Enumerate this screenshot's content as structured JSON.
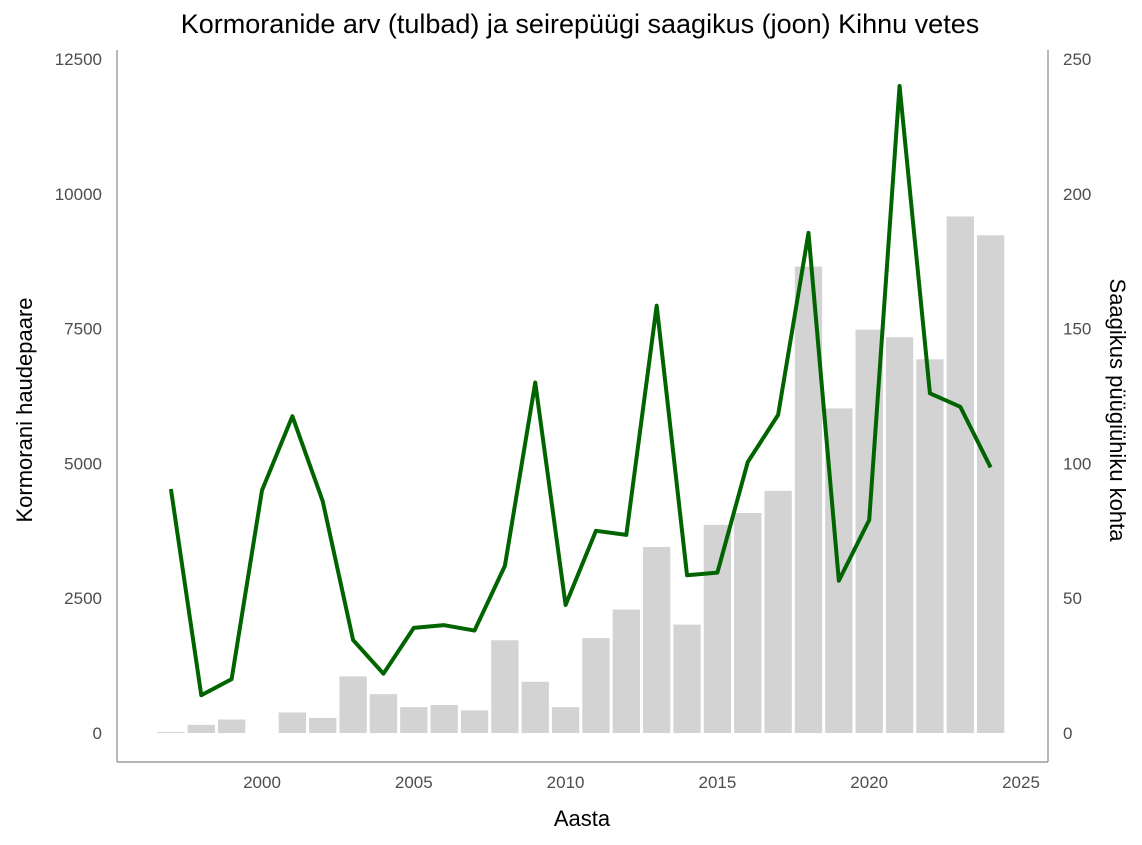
{
  "chart_data": {
    "type": "bar+line",
    "title": "Kormoranide arv (tulbad) ja seirepüügi saagikus (joon) Kihnu vetes",
    "xlabel": "Aasta",
    "ylabel": "Kormorani haudepaare",
    "y2label": "Saagikus püügiühiku kohta",
    "xlim": [
      1996.3,
      2025.4
    ],
    "ylim": [
      0,
      12500
    ],
    "y2lim": [
      0,
      250
    ],
    "xticks": [
      "2000",
      "2005",
      "2010",
      "2015",
      "2020",
      "2025"
    ],
    "yticks": [
      "0",
      "2500",
      "5000",
      "7500",
      "10000",
      "12500"
    ],
    "y2ticks": [
      "0",
      "50",
      "100",
      "150",
      "200",
      "250"
    ],
    "grid": false,
    "colors": {
      "bars": "#d3d3d3",
      "line": "#006400"
    },
    "years": [
      1997,
      1998,
      1999,
      2000,
      2001,
      2002,
      2003,
      2004,
      2005,
      2006,
      2007,
      2008,
      2009,
      2010,
      2011,
      2012,
      2013,
      2014,
      2015,
      2016,
      2017,
      2018,
      2019,
      2020,
      2021,
      2022,
      2023,
      2024
    ],
    "series": [
      {
        "name": "Kormorani haudepaare",
        "type": "bar",
        "axis": "left",
        "values": [
          20,
          150,
          250,
          0,
          380,
          280,
          1050,
          720,
          480,
          520,
          420,
          1720,
          950,
          480,
          1760,
          2290,
          3450,
          2010,
          3860,
          4080,
          4490,
          8650,
          6020,
          7480,
          7340,
          6930,
          9580,
          9230
        ]
      },
      {
        "name": "Saagikus püügiühiku kohta",
        "type": "line",
        "axis": "right",
        "values": [
          90.5,
          14,
          20,
          90,
          117.5,
          86,
          34.5,
          22,
          39,
          40,
          38,
          62,
          130,
          47.5,
          75,
          73.5,
          158.5,
          58.5,
          59.5,
          100.5,
          118,
          185.5,
          56.5,
          79,
          240,
          126,
          121,
          98.5
        ]
      }
    ]
  }
}
